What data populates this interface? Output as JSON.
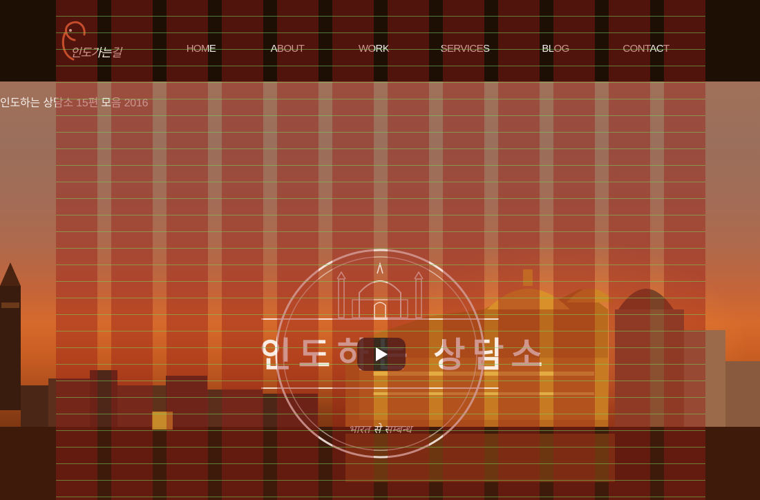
{
  "header": {
    "logo_text": "인도가는길",
    "nav": [
      {
        "label": "HOME"
      },
      {
        "label": "ABOUT"
      },
      {
        "label": "WORK"
      },
      {
        "label": "SERVICES"
      },
      {
        "label": "BLOG"
      },
      {
        "label": "CONTACT"
      }
    ]
  },
  "hero": {
    "video_title": "인도하는 상담소 15편 모음 2016",
    "emblem_title": "인도하는 상담소",
    "emblem_subtitle": "भारत से सम्बन्ध",
    "play_icon": "play-icon"
  },
  "colors": {
    "header_bg": "#1d0f04",
    "logo_accent": "#e8703a",
    "grid_column": "#961c16",
    "grid_line": "#78d25a"
  }
}
